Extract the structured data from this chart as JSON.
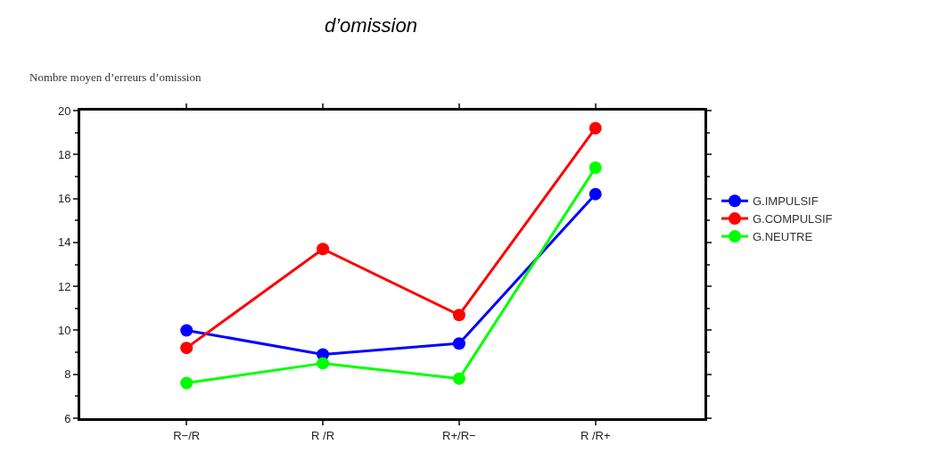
{
  "chart_data": {
    "type": "line",
    "title": "d’omission",
    "ylabel": "Nombre moyen d’erreurs d’omission",
    "categories": [
      "R−/R",
      "R /R",
      "R+/R−",
      "R /R+"
    ],
    "series": [
      {
        "name": "G.IMPULSIF",
        "color": "#0000ff",
        "values": [
          10.0,
          8.9,
          9.4,
          16.2
        ]
      },
      {
        "name": "G.COMPULSIF",
        "color": "#ff0000",
        "values": [
          9.2,
          13.7,
          10.7,
          19.2
        ]
      },
      {
        "name": "G.NEUTRE",
        "color": "#00ff00",
        "values": [
          7.6,
          8.5,
          7.8,
          17.4
        ]
      }
    ],
    "ylim": [
      6,
      20
    ],
    "yticks": [
      6,
      8,
      10,
      12,
      14,
      16,
      18,
      20
    ],
    "grid": false,
    "legend": "right",
    "marker": "circle",
    "line_style": "solid"
  }
}
